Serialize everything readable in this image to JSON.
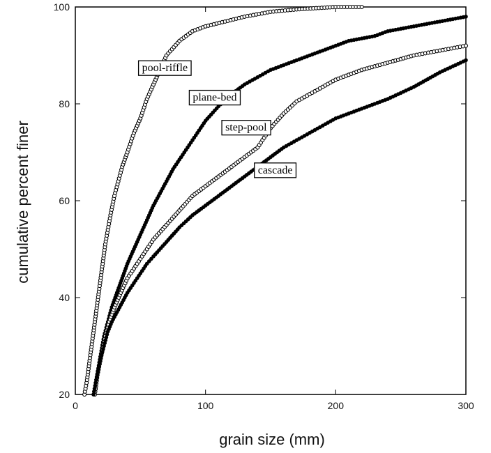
{
  "chart_data": {
    "type": "scatter",
    "title": "",
    "xlabel": "grain size (mm)",
    "ylabel": "cumulative percent finer",
    "xlim": [
      0,
      300
    ],
    "ylim": [
      20,
      100
    ],
    "xticks": [
      0,
      100,
      200,
      300
    ],
    "yticks": [
      20,
      40,
      60,
      80,
      100
    ],
    "grid": false,
    "legend": "none; curves labeled directly",
    "series": [
      {
        "name": "pool-riffle",
        "marker": "open-circle",
        "color": "#000000",
        "x": [
          7,
          9,
          11,
          13,
          15,
          17,
          19,
          21,
          23,
          25,
          27,
          30,
          33,
          36,
          40,
          45,
          50,
          55,
          60,
          65,
          70,
          80,
          90,
          100,
          115,
          130,
          150,
          170,
          200,
          220
        ],
        "y": [
          20,
          23,
          27,
          31,
          35,
          39,
          43,
          47,
          51,
          54,
          57,
          61,
          64,
          67,
          70,
          74,
          77,
          81,
          84,
          87,
          90,
          93,
          95,
          96,
          97,
          98,
          99,
          99.5,
          100,
          100
        ]
      },
      {
        "name": "plane-bed",
        "marker": "filled-circle",
        "color": "#000000",
        "x": [
          14,
          16,
          18,
          20,
          22,
          25,
          28,
          32,
          36,
          40,
          45,
          50,
          55,
          60,
          65,
          70,
          75,
          80,
          85,
          90,
          95,
          100,
          110,
          120,
          130,
          140,
          150,
          160,
          170,
          180,
          190,
          200,
          210,
          220,
          230,
          240,
          250,
          260,
          270,
          280,
          290,
          300
        ],
        "y": [
          20,
          23,
          26,
          29,
          32,
          35,
          38,
          41,
          44,
          47,
          50,
          53,
          56,
          59,
          61.5,
          64,
          66.5,
          68.5,
          70.5,
          72.5,
          74.5,
          76.5,
          79.5,
          82,
          84,
          85.5,
          87,
          88,
          89,
          90,
          91,
          92,
          93,
          93.5,
          94,
          95,
          95.5,
          96,
          96.5,
          97,
          97.5,
          98
        ]
      },
      {
        "name": "step-pool",
        "marker": "open-circle",
        "color": "#000000",
        "x": [
          15,
          17,
          20,
          23,
          26,
          30,
          35,
          40,
          45,
          50,
          55,
          60,
          70,
          80,
          90,
          100,
          110,
          120,
          130,
          140,
          150,
          160,
          170,
          180,
          190,
          200,
          220,
          240,
          260,
          280,
          300
        ],
        "y": [
          20,
          24,
          28,
          32,
          35,
          38,
          41,
          44,
          46,
          48,
          50,
          52,
          55,
          58,
          61,
          63,
          65,
          67,
          69,
          71,
          75,
          78,
          80.5,
          82,
          83.5,
          85,
          87,
          88.5,
          90,
          91,
          92
        ]
      },
      {
        "name": "cascade",
        "marker": "filled-circle",
        "color": "#000000",
        "x": [
          14,
          16,
          19,
          22,
          25,
          28,
          32,
          36,
          40,
          45,
          50,
          55,
          60,
          70,
          80,
          90,
          100,
          110,
          120,
          130,
          140,
          150,
          160,
          170,
          180,
          190,
          200,
          210,
          220,
          240,
          260,
          280,
          300
        ],
        "y": [
          20,
          23,
          27,
          30,
          33,
          35,
          37,
          39,
          41,
          43,
          45,
          47,
          48.5,
          51.5,
          54.5,
          57,
          59,
          61,
          63,
          65,
          67,
          69,
          71,
          72.5,
          74,
          75.5,
          77,
          78,
          79,
          81,
          83.5,
          86.5,
          89
        ]
      }
    ]
  }
}
